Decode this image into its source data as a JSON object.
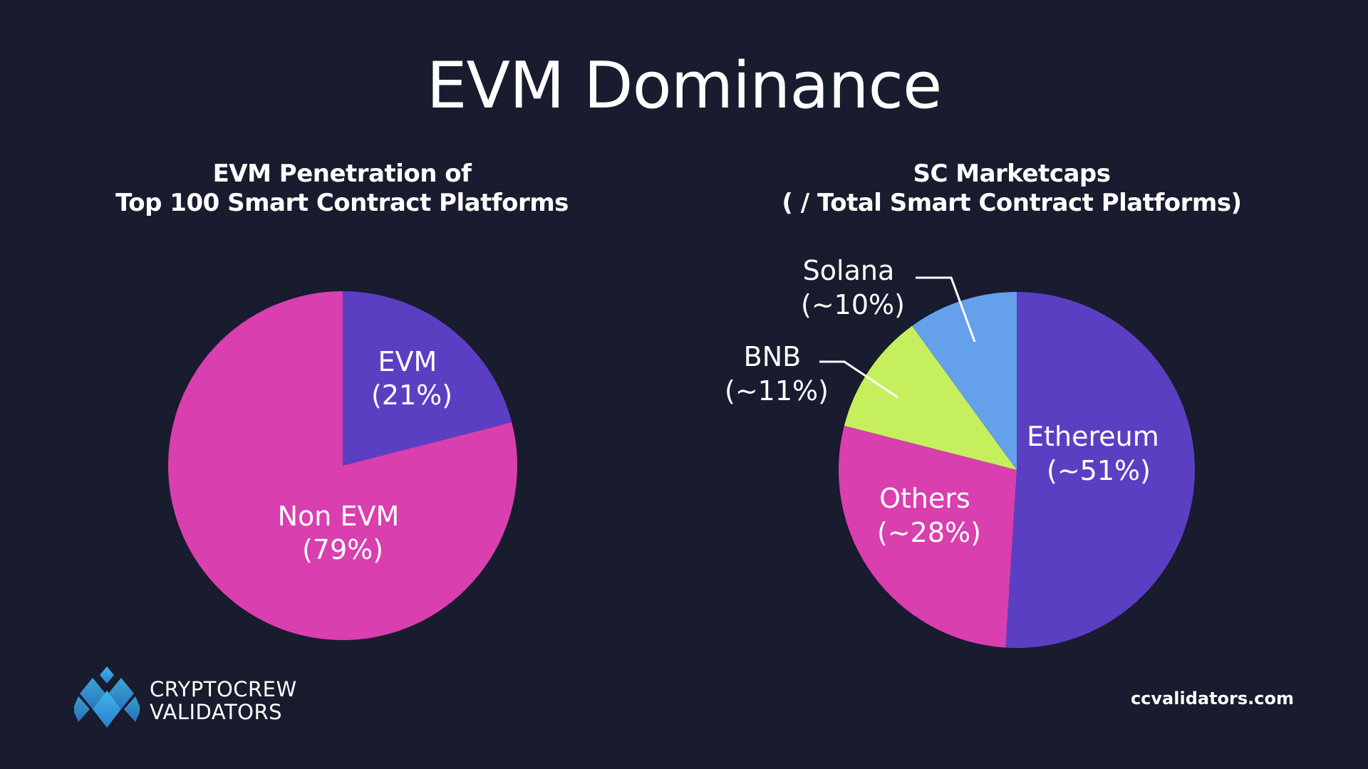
{
  "title": "EVM Dominance",
  "colors": {
    "background": "#191b2e",
    "purple": "#5b3fc3",
    "magenta": "#d93fae",
    "lime": "#c5ef5c",
    "blue": "#65a0ea",
    "text": "#ffffff"
  },
  "chart_data": [
    {
      "type": "pie",
      "title_lines": [
        "EVM Penetration of",
        "Top 100 Smart Contract Platforms"
      ],
      "slices": [
        {
          "name": "EVM",
          "value": 21,
          "label_lines": [
            "EVM",
            "(21%)"
          ],
          "color": "#5b3fc3"
        },
        {
          "name": "Non EVM",
          "value": 79,
          "label_lines": [
            "Non EVM",
            "(79%)"
          ],
          "color": "#d93fae"
        }
      ]
    },
    {
      "type": "pie",
      "title_lines": [
        "SC Marketcaps",
        "( / Total Smart Contract Platforms)"
      ],
      "slices": [
        {
          "name": "Ethereum",
          "value": 51,
          "label_lines": [
            "Ethereum",
            "(~51%)"
          ],
          "color": "#5b3fc3"
        },
        {
          "name": "Others",
          "value": 28,
          "label_lines": [
            "Others",
            "(~28%)"
          ],
          "color": "#d93fae"
        },
        {
          "name": "BNB",
          "value": 11,
          "label_lines": [
            "BNB",
            "(~11%)"
          ],
          "color": "#c5ef5c"
        },
        {
          "name": "Solana",
          "value": 10,
          "label_lines": [
            "Solana",
            "(~10%)"
          ],
          "color": "#65a0ea"
        }
      ]
    }
  ],
  "logo": {
    "line1": "CRYPTOCREW",
    "line2": "VALIDATORS",
    "icon": "cryptocrew-diamond-logo-icon"
  },
  "website": "ccvalidators.com"
}
